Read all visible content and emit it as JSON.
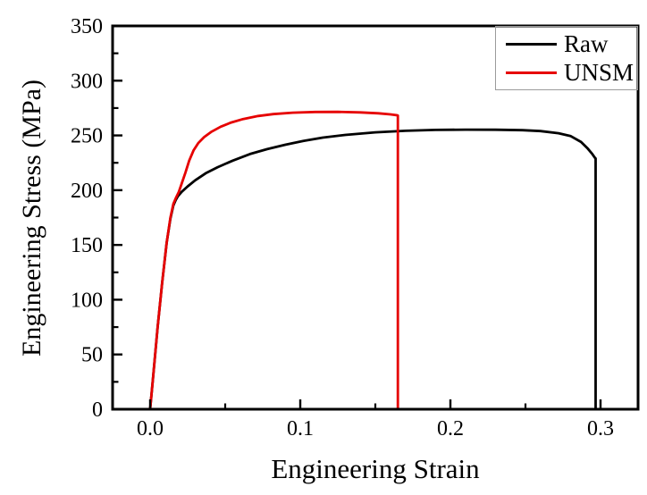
{
  "figure": {
    "background": "#ffffff",
    "frame_color": "#000000"
  },
  "chart_data": {
    "type": "line",
    "title": "",
    "xlabel": "Engineering Strain",
    "ylabel": "Engineering Stress (MPa)",
    "xlim": [
      -0.025,
      0.325
    ],
    "ylim": [
      0,
      350
    ],
    "grid": false,
    "tick_direction": "in",
    "x_ticks": {
      "major": [
        0.0,
        0.1,
        0.2,
        0.3
      ],
      "labels": [
        "0.0",
        "0.1",
        "0.2",
        "0.3"
      ],
      "minor": [
        0.05,
        0.15,
        0.25
      ]
    },
    "y_ticks": {
      "major": [
        0,
        50,
        100,
        150,
        200,
        250,
        300,
        350
      ],
      "labels": [
        "0",
        "50",
        "100",
        "150",
        "200",
        "250",
        "300",
        "350"
      ],
      "minor": [
        25,
        75,
        125,
        175,
        225,
        275,
        325
      ]
    },
    "legend": {
      "position": "top-right",
      "entries": [
        {
          "label": "Raw",
          "color": "#000000"
        },
        {
          "label": "UNSM",
          "color": "#e60000"
        }
      ]
    },
    "series": [
      {
        "name": "Raw",
        "color": "#000000",
        "description": "Raw specimen: yields near 189 MPa, hardens to UTS ~255 MPa, fractures at strain ~0.297 (stress drops from ~229 MPa to 0)",
        "points": [
          [
            0.0,
            0
          ],
          [
            0.002,
            30
          ],
          [
            0.005,
            75
          ],
          [
            0.008,
            115
          ],
          [
            0.011,
            152
          ],
          [
            0.0135,
            174
          ],
          [
            0.0155,
            186
          ],
          [
            0.017,
            191
          ],
          [
            0.0185,
            194.5
          ],
          [
            0.021,
            198.5
          ],
          [
            0.025,
            203.5
          ],
          [
            0.03,
            209
          ],
          [
            0.037,
            215.5
          ],
          [
            0.045,
            221
          ],
          [
            0.055,
            227
          ],
          [
            0.0665,
            233
          ],
          [
            0.078,
            237.5
          ],
          [
            0.09,
            241.5
          ],
          [
            0.102,
            245
          ],
          [
            0.115,
            248
          ],
          [
            0.13,
            250.5
          ],
          [
            0.15,
            252.8
          ],
          [
            0.17,
            254.2
          ],
          [
            0.19,
            255
          ],
          [
            0.21,
            255.3
          ],
          [
            0.23,
            255.2
          ],
          [
            0.248,
            254.8
          ],
          [
            0.26,
            254
          ],
          [
            0.272,
            252
          ],
          [
            0.28,
            249.5
          ],
          [
            0.287,
            244
          ],
          [
            0.2915,
            238
          ],
          [
            0.2945,
            233
          ],
          [
            0.2963,
            229.5
          ],
          [
            0.2967,
            229
          ],
          [
            0.2967,
            0
          ]
        ]
      },
      {
        "name": "UNSM",
        "color": "#e60000",
        "description": "UNSM-treated specimen: higher flow stress, UTS ~271 MPa near strain 0.12, fractures at strain ~0.165 (stress drops from ~268 MPa to 0)",
        "points": [
          [
            0.0,
            0
          ],
          [
            0.002,
            30
          ],
          [
            0.005,
            75
          ],
          [
            0.008,
            115
          ],
          [
            0.011,
            152
          ],
          [
            0.0135,
            175
          ],
          [
            0.0155,
            187.5
          ],
          [
            0.017,
            192.5
          ],
          [
            0.019,
            198
          ],
          [
            0.021,
            206
          ],
          [
            0.0235,
            216
          ],
          [
            0.026,
            227
          ],
          [
            0.029,
            236.5
          ],
          [
            0.032,
            243
          ],
          [
            0.036,
            248.5
          ],
          [
            0.041,
            253.5
          ],
          [
            0.047,
            258
          ],
          [
            0.054,
            261.8
          ],
          [
            0.062,
            265
          ],
          [
            0.072,
            267.8
          ],
          [
            0.082,
            269.5
          ],
          [
            0.095,
            270.8
          ],
          [
            0.11,
            271.4
          ],
          [
            0.125,
            271.5
          ],
          [
            0.14,
            271
          ],
          [
            0.152,
            270.2
          ],
          [
            0.16,
            269.2
          ],
          [
            0.1645,
            268.4
          ],
          [
            0.165,
            268.2
          ],
          [
            0.165,
            0
          ]
        ]
      }
    ]
  }
}
